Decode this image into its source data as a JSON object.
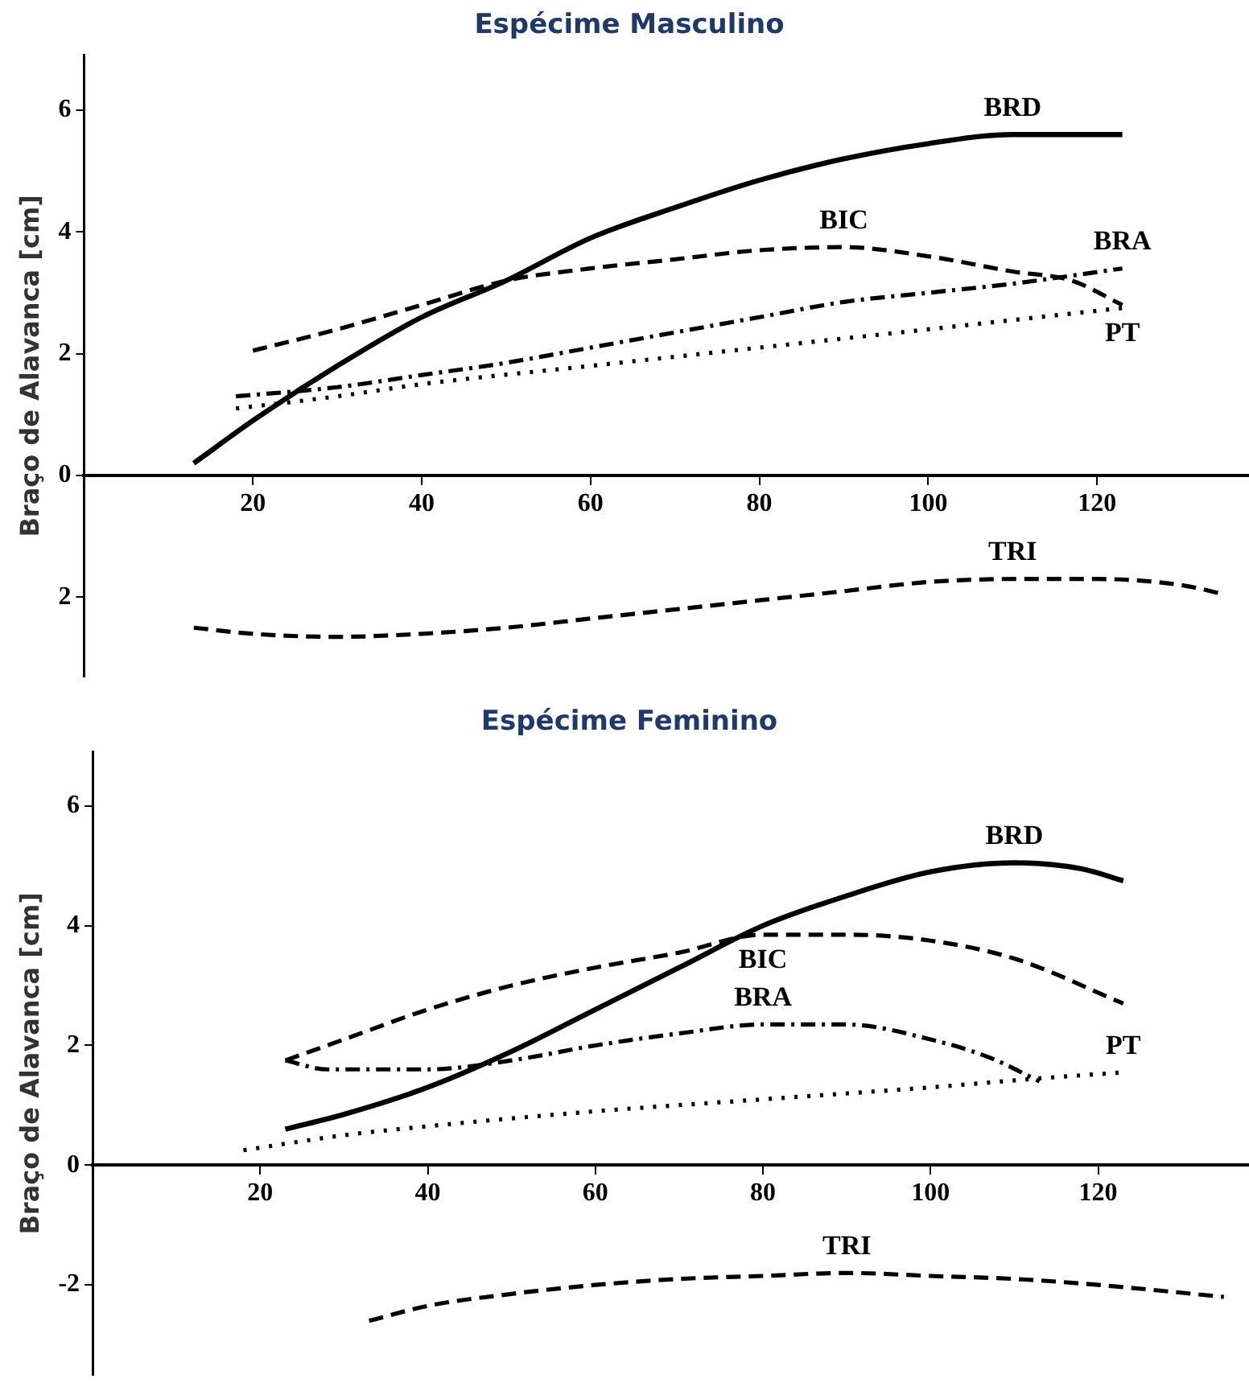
{
  "chart_data": [
    {
      "type": "line",
      "title": "Espécime Masculino",
      "ylabel": "Braço de Alavanca [cm]",
      "xlim": [
        0,
        138
      ],
      "xticks": [
        20,
        40,
        60,
        80,
        100,
        120
      ],
      "ylim": [
        -3.3,
        6.9
      ],
      "yticks": [
        {
          "value": -2,
          "label": "2"
        },
        0,
        2,
        4,
        6
      ],
      "grid": false,
      "legend": false,
      "marker": "none",
      "series": [
        {
          "name": "BRD",
          "color": "#000000",
          "line_style": "solid",
          "x": [
            13,
            20,
            30,
            40,
            50,
            60,
            70,
            80,
            90,
            100,
            110,
            123
          ],
          "values": [
            0.2,
            0.9,
            1.8,
            2.6,
            3.2,
            3.9,
            4.4,
            4.85,
            5.2,
            5.45,
            5.6,
            5.6
          ]
        },
        {
          "name": "BIC",
          "color": "#000000",
          "line_style": "dashed",
          "x": [
            20,
            30,
            40,
            50,
            60,
            70,
            80,
            90,
            100,
            110,
            117,
            123
          ],
          "values": [
            2.05,
            2.4,
            2.8,
            3.2,
            3.4,
            3.55,
            3.7,
            3.75,
            3.6,
            3.35,
            3.2,
            2.8
          ]
        },
        {
          "name": "BRA",
          "color": "#000000",
          "line_style": "dashdot",
          "x": [
            18,
            30,
            40,
            50,
            60,
            70,
            80,
            90,
            100,
            110,
            123
          ],
          "values": [
            1.3,
            1.45,
            1.65,
            1.85,
            2.1,
            2.35,
            2.6,
            2.85,
            3.0,
            3.15,
            3.4
          ]
        },
        {
          "name": "PT",
          "color": "#000000",
          "line_style": "dotted",
          "x": [
            18,
            30,
            40,
            60,
            80,
            100,
            123
          ],
          "values": [
            1.1,
            1.3,
            1.5,
            1.8,
            2.1,
            2.4,
            2.75
          ]
        },
        {
          "name": "TRI",
          "color": "#000000",
          "line_style": "dashed",
          "x": [
            13,
            20,
            30,
            40,
            50,
            60,
            70,
            80,
            90,
            100,
            110,
            120,
            130,
            135
          ],
          "values": [
            -2.5,
            -2.6,
            -2.65,
            -2.6,
            -2.5,
            -2.35,
            -2.2,
            -2.05,
            -1.9,
            -1.75,
            -1.7,
            -1.7,
            -1.8,
            -1.95
          ]
        }
      ]
    },
    {
      "type": "line",
      "title": "Espécime Feminino",
      "ylabel": "Braço de Alavanca [cm]",
      "xlim": [
        0,
        138
      ],
      "xticks": [
        20,
        40,
        60,
        80,
        100,
        120
      ],
      "ylim": [
        -3.5,
        6.9
      ],
      "yticks": [
        -2,
        0,
        2,
        4,
        6
      ],
      "grid": false,
      "legend": false,
      "marker": "none",
      "series": [
        {
          "name": "BRD",
          "color": "#000000",
          "line_style": "solid",
          "x": [
            23,
            30,
            40,
            50,
            60,
            70,
            80,
            90,
            100,
            110,
            118,
            123
          ],
          "values": [
            0.6,
            0.85,
            1.3,
            1.9,
            2.6,
            3.3,
            4.0,
            4.5,
            4.9,
            5.05,
            4.95,
            4.75
          ]
        },
        {
          "name": "BIC",
          "color": "#000000",
          "line_style": "dashed",
          "x": [
            23,
            30,
            40,
            50,
            60,
            70,
            80,
            90,
            100,
            110,
            123
          ],
          "values": [
            1.75,
            2.1,
            2.6,
            3.0,
            3.3,
            3.55,
            3.85,
            3.85,
            3.75,
            3.45,
            2.7
          ]
        },
        {
          "name": "BRA",
          "color": "#000000",
          "line_style": "dashdot",
          "x": [
            23,
            28,
            40,
            50,
            60,
            70,
            80,
            90,
            100,
            107,
            113
          ],
          "values": [
            1.75,
            1.6,
            1.6,
            1.75,
            2.0,
            2.2,
            2.35,
            2.35,
            2.1,
            1.8,
            1.4
          ]
        },
        {
          "name": "PT",
          "color": "#000000",
          "line_style": "dotted",
          "x": [
            18,
            30,
            40,
            60,
            80,
            100,
            113,
            123
          ],
          "values": [
            0.25,
            0.5,
            0.65,
            0.9,
            1.1,
            1.3,
            1.45,
            1.55
          ]
        },
        {
          "name": "TRI",
          "color": "#000000",
          "line_style": "dashed",
          "x": [
            33,
            40,
            50,
            60,
            70,
            80,
            90,
            100,
            110,
            120,
            135
          ],
          "values": [
            -2.6,
            -2.35,
            -2.15,
            -2.0,
            -1.9,
            -1.85,
            -1.8,
            -1.85,
            -1.9,
            -2.0,
            -2.2
          ]
        }
      ]
    }
  ]
}
